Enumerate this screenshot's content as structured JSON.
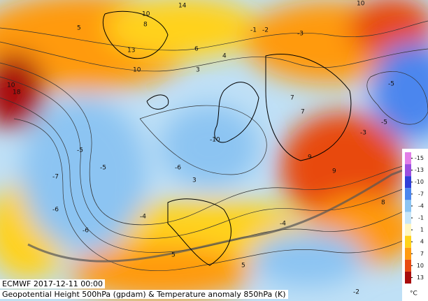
{
  "caption": {
    "line1": "ECMWF 2017-12-11 00:00",
    "line2": "Geopotential Height 500hPa (gpdam) & Temperature anomaly 850hPa (K)"
  },
  "legend": {
    "unit": "°C",
    "ticks": [
      -15,
      -13,
      -10,
      -7,
      -4,
      -1,
      1,
      4,
      7,
      10,
      13
    ],
    "colors": [
      "#e27ee8",
      "#9a4fe0",
      "#2f3fd8",
      "#4b86ee",
      "#8cc4f2",
      "#c8e6f8",
      "#fff6c0",
      "#ffd21a",
      "#ff9a10",
      "#e84a10",
      "#a80c0c"
    ]
  },
  "labels": [
    "10",
    "14",
    "8",
    "10",
    "13",
    "5",
    "-1",
    "-2",
    "-3",
    "10",
    "6",
    "4",
    "3",
    "-5",
    "-6",
    "-7",
    "-5",
    "-6",
    "-4",
    "-10",
    "-6",
    "3",
    "5",
    "7",
    "9",
    "9",
    "8",
    "-5",
    "-3",
    "-4",
    "-5",
    "7",
    "18",
    "10",
    "-2",
    "5"
  ]
}
